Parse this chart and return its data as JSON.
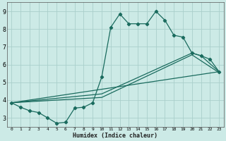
{
  "title": "",
  "xlabel": "Humidex (Indice chaleur)",
  "background_color": "#cceae6",
  "grid_color": "#aacfcb",
  "line_color": "#1a6b5e",
  "xlim": [
    -0.5,
    23.5
  ],
  "ylim": [
    2.5,
    9.5
  ],
  "yticks": [
    3,
    4,
    5,
    6,
    7,
    8,
    9
  ],
  "xticks": [
    0,
    1,
    2,
    3,
    4,
    5,
    6,
    7,
    8,
    9,
    10,
    11,
    12,
    13,
    14,
    15,
    16,
    17,
    18,
    19,
    20,
    21,
    22,
    23
  ],
  "line1_x": [
    0,
    1,
    2,
    3,
    4,
    5,
    6,
    7,
    8,
    9,
    10,
    11,
    12,
    13,
    14,
    15,
    16,
    17,
    18,
    19,
    20,
    21,
    22,
    23
  ],
  "line1_y": [
    3.85,
    3.6,
    3.4,
    3.3,
    3.0,
    2.7,
    2.75,
    3.55,
    3.6,
    3.85,
    5.3,
    8.1,
    8.85,
    8.3,
    8.3,
    8.3,
    9.0,
    8.5,
    7.65,
    7.55,
    6.65,
    6.5,
    6.3,
    5.6
  ],
  "line2_x": [
    0,
    23
  ],
  "line2_y": [
    3.85,
    5.6
  ],
  "line3_x": [
    0,
    10,
    20,
    21,
    23
  ],
  "line3_y": [
    3.85,
    4.35,
    6.65,
    6.5,
    5.6
  ],
  "line4_x": [
    0,
    10,
    20,
    23
  ],
  "line4_y": [
    3.85,
    4.15,
    6.55,
    5.55
  ]
}
